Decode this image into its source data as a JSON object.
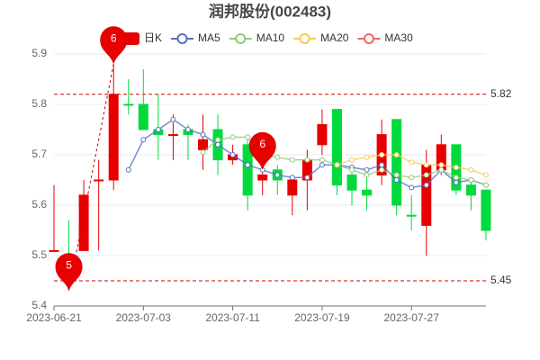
{
  "chart_data": {
    "type": "candlestick",
    "title": "润邦股份(002483)",
    "categories": [
      "2023-06-21",
      null,
      null,
      null,
      null,
      null,
      "2023-07-03",
      null,
      null,
      null,
      null,
      null,
      "2023-07-11",
      null,
      null,
      null,
      null,
      null,
      "2023-07-19",
      null,
      null,
      null,
      null,
      null,
      "2023-07-27",
      null,
      null,
      null,
      null,
      null
    ],
    "candles": {
      "name": "日K",
      "up_color": "#e60000",
      "down_color": "#00da3c",
      "open": [
        5.51,
        5.5,
        5.51,
        5.65,
        5.65,
        5.8,
        5.8,
        5.75,
        5.74,
        5.75,
        5.71,
        5.75,
        5.69,
        5.72,
        5.65,
        5.67,
        5.62,
        5.65,
        5.72,
        5.79,
        5.66,
        5.63,
        5.66,
        5.77,
        5.58,
        5.56,
        5.67,
        5.72,
        5.64,
        5.63
      ],
      "close": [
        5.51,
        5.49,
        5.62,
        5.65,
        5.82,
        5.8,
        5.75,
        5.74,
        5.74,
        5.74,
        5.73,
        5.69,
        5.7,
        5.62,
        5.66,
        5.65,
        5.65,
        5.69,
        5.76,
        5.64,
        5.63,
        5.62,
        5.74,
        5.6,
        5.58,
        5.68,
        5.72,
        5.63,
        5.62,
        5.55
      ],
      "high": [
        5.64,
        5.57,
        5.65,
        5.69,
        5.88,
        5.85,
        5.87,
        5.82,
        5.78,
        5.76,
        5.78,
        5.78,
        5.72,
        5.73,
        5.67,
        5.68,
        5.66,
        5.71,
        5.79,
        5.79,
        5.68,
        5.66,
        5.77,
        5.77,
        5.62,
        5.71,
        5.74,
        5.72,
        5.65,
        5.63
      ],
      "low": [
        5.51,
        5.43,
        5.51,
        5.51,
        5.63,
        5.78,
        5.75,
        5.69,
        5.69,
        5.69,
        5.67,
        5.66,
        5.68,
        5.59,
        5.62,
        5.62,
        5.58,
        5.59,
        5.7,
        5.62,
        5.6,
        5.59,
        5.64,
        5.58,
        5.55,
        5.5,
        5.66,
        5.62,
        5.59,
        5.53
      ]
    },
    "series": [
      {
        "name": "MA5",
        "color": "#5470c6",
        "values": [
          null,
          null,
          null,
          null,
          null,
          5.67,
          5.73,
          5.75,
          5.77,
          5.75,
          5.74,
          5.72,
          5.7,
          5.68,
          5.67,
          5.66,
          5.655,
          5.655,
          5.68,
          5.68,
          5.675,
          5.67,
          5.68,
          5.65,
          5.635,
          5.64,
          5.67,
          5.645,
          5.65,
          5.64
        ]
      },
      {
        "name": "MA10",
        "color": "#91cc75",
        "values": [
          null,
          null,
          null,
          null,
          null,
          null,
          null,
          null,
          null,
          null,
          5.705,
          5.73,
          5.735,
          5.735,
          5.7,
          5.695,
          5.69,
          5.69,
          5.69,
          5.68,
          5.67,
          5.66,
          5.67,
          5.66,
          5.655,
          5.66,
          5.67,
          5.655,
          5.65,
          5.64
        ]
      },
      {
        "name": "MA20",
        "color": "#fac858",
        "values": [
          null,
          null,
          null,
          null,
          null,
          null,
          null,
          null,
          null,
          null,
          null,
          null,
          null,
          null,
          null,
          null,
          null,
          null,
          null,
          5.68,
          5.69,
          5.695,
          5.7,
          5.7,
          5.685,
          5.68,
          5.68,
          5.675,
          5.67,
          5.66
        ]
      },
      {
        "name": "MA30",
        "color": "#ee6666",
        "values": [
          null,
          null,
          null,
          null,
          null,
          null,
          null,
          null,
          null,
          null,
          null,
          null,
          null,
          null,
          null,
          null,
          null,
          null,
          null,
          null,
          null,
          null,
          null,
          null,
          null,
          null,
          null,
          null,
          null,
          null
        ]
      }
    ],
    "reference_lines": [
      {
        "value": 5.82,
        "color": "#cc0000"
      },
      {
        "value": 5.45,
        "color": "#cc0000"
      }
    ],
    "annotations": [
      {
        "label": "6",
        "index": 4,
        "value": 5.88
      },
      {
        "label": "5",
        "index": 1,
        "value": 5.43
      },
      {
        "label": "6",
        "index": 14,
        "value": 5.67
      }
    ],
    "ylim": [
      5.4,
      5.9
    ],
    "yticks": [
      5.4,
      5.5,
      5.6,
      5.7,
      5.8,
      5.9
    ],
    "grid": true
  }
}
